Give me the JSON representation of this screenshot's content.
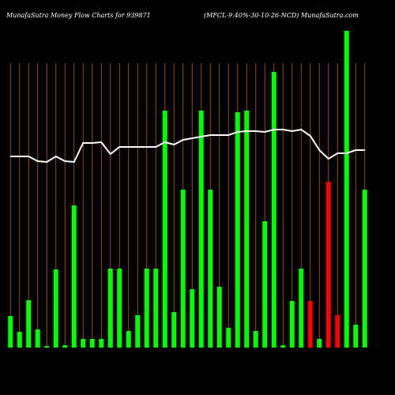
{
  "chart_data": {
    "type": "bar",
    "title": "MunafaSutra  Money Flow  Charts for 939871",
    "subtitle": "(MFCL-9.40%-30-10-26-NCD) MunafaSutra.com",
    "categories": [
      null,
      null,
      null,
      null,
      null,
      null,
      null,
      null,
      null,
      null,
      null,
      null,
      null,
      null,
      null,
      null,
      null,
      null,
      null,
      null,
      null,
      null,
      null,
      null,
      null,
      null,
      null,
      null,
      null,
      null,
      null,
      null,
      null,
      null,
      null,
      null,
      null,
      null,
      null,
      null
    ],
    "ylim": [
      0,
      410
    ],
    "grid": true,
    "grid_color": "#b8600b",
    "series": [
      {
        "type": "bar",
        "values": [
          40,
          20,
          60,
          23,
          2,
          99,
          3,
          180,
          11,
          11,
          11,
          100,
          100,
          21,
          41,
          100,
          100,
          300,
          45,
          200,
          74,
          300,
          200,
          77,
          25,
          298,
          300,
          21,
          160,
          349,
          3,
          59,
          100,
          59,
          11,
          210,
          41,
          401,
          29,
          200
        ],
        "colors": [
          "#00ff00",
          "#00ff00",
          "#00ff00",
          "#00ff00",
          "#00ff00",
          "#00ff00",
          "#00ff00",
          "#00ff00",
          "#00ff00",
          "#00ff00",
          "#00ff00",
          "#00ff00",
          "#00ff00",
          "#00ff00",
          "#00ff00",
          "#00ff00",
          "#00ff00",
          "#00ff00",
          "#00ff00",
          "#00ff00",
          "#00ff00",
          "#00ff00",
          "#00ff00",
          "#00ff00",
          "#00ff00",
          "#00ff00",
          "#00ff00",
          "#00ff00",
          "#00ff00",
          "#00ff00",
          "#00ff00",
          "#00ff00",
          "#00ff00",
          "#ff0000",
          "#00ff00",
          "#ff0000",
          "#ff0000",
          "#00ff00",
          "#00ff00",
          "#00ff00"
        ]
      },
      {
        "type": "line",
        "color": "#ffffff",
        "values": [
          242,
          242,
          242,
          236,
          235,
          242,
          236,
          235,
          259,
          259,
          260,
          245,
          254,
          254,
          254,
          254,
          254,
          260,
          257,
          263,
          265,
          267,
          269,
          269,
          269,
          273,
          274,
          274,
          273,
          276,
          276,
          274,
          276,
          268,
          250,
          239,
          246,
          246,
          250,
          250
        ]
      }
    ]
  }
}
